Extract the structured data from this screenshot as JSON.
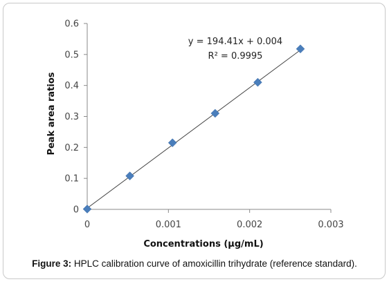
{
  "chart_data": {
    "type": "scatter",
    "xlabel": "Concentrations (µg/mL)",
    "ylabel": "Peak area ratios",
    "xlim": [
      0,
      0.003
    ],
    "ylim": [
      0,
      0.6
    ],
    "x_ticks": [
      0,
      0.001,
      0.002,
      0.003
    ],
    "x_tick_labels": [
      "0",
      "0.001",
      "0.002",
      "0.003"
    ],
    "y_ticks": [
      0,
      0.1,
      0.2,
      0.3,
      0.4,
      0.5,
      0.6
    ],
    "y_tick_labels": [
      "0",
      "0.1",
      "0.2",
      "0.3",
      "0.4",
      "0.5",
      "0.6"
    ],
    "grid": false,
    "series": [
      {
        "x": [
          0,
          0.000525,
          0.00105,
          0.001575,
          0.0021,
          0.002625
        ],
        "y": [
          0.001,
          0.108,
          0.215,
          0.31,
          0.41,
          0.518
        ],
        "marker": "diamond",
        "color": "#4a7ebb"
      }
    ],
    "trendline": {
      "slope": 194.41,
      "intercept": 0.004,
      "x_range": [
        0,
        0.002625
      ],
      "color": "#444444"
    },
    "annotations": [
      "y = 194.41x + 0.004",
      "R² = 0.9995"
    ]
  },
  "caption": {
    "lead": "Figure 3:",
    "text": " HPLC calibration curve of amoxicillin trihydrate (reference standard)."
  }
}
